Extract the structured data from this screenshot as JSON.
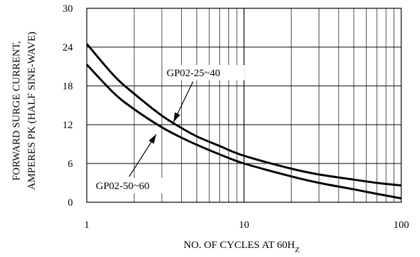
{
  "chart_data": {
    "type": "line",
    "title": "",
    "xlabel_main": "NO. OF CYCLES AT 60H",
    "xlabel_sub": "Z",
    "ylabel_line1": "FORWARD SURGE CURRENT,",
    "ylabel_line2": "AMPERES PK (HALF SINE-WAVE)",
    "x_scale": "log",
    "xlim": [
      1,
      100
    ],
    "ylim": [
      0,
      30
    ],
    "x_ticks": [
      1,
      10,
      100
    ],
    "x_tick_labels": [
      "1",
      "10",
      "100"
    ],
    "y_ticks": [
      0,
      6,
      12,
      18,
      24,
      30
    ],
    "y_tick_labels": [
      "0",
      "6",
      "12",
      "18",
      "24",
      "30"
    ],
    "grid": true,
    "series": [
      {
        "name": "GP02-25~40",
        "x": [
          1,
          1.5,
          2,
          3,
          4,
          5,
          7,
          10,
          20,
          30,
          50,
          70,
          100
        ],
        "y": [
          24.5,
          19.5,
          16.8,
          13.4,
          11.5,
          10.2,
          8.7,
          7.2,
          5.2,
          4.3,
          3.5,
          3.0,
          2.6
        ]
      },
      {
        "name": "GP02-50~60",
        "x": [
          1,
          1.5,
          2,
          3,
          4,
          5,
          7,
          10,
          20,
          30,
          50,
          70,
          100
        ],
        "y": [
          21.3,
          16.8,
          14.4,
          11.6,
          10.0,
          8.9,
          7.4,
          6.0,
          4.0,
          3.0,
          2.0,
          1.3,
          0.6
        ]
      }
    ],
    "annotations": [
      {
        "text": "GP02-25~40",
        "series": 0
      },
      {
        "text": "GP02-50~60",
        "series": 1
      }
    ]
  }
}
